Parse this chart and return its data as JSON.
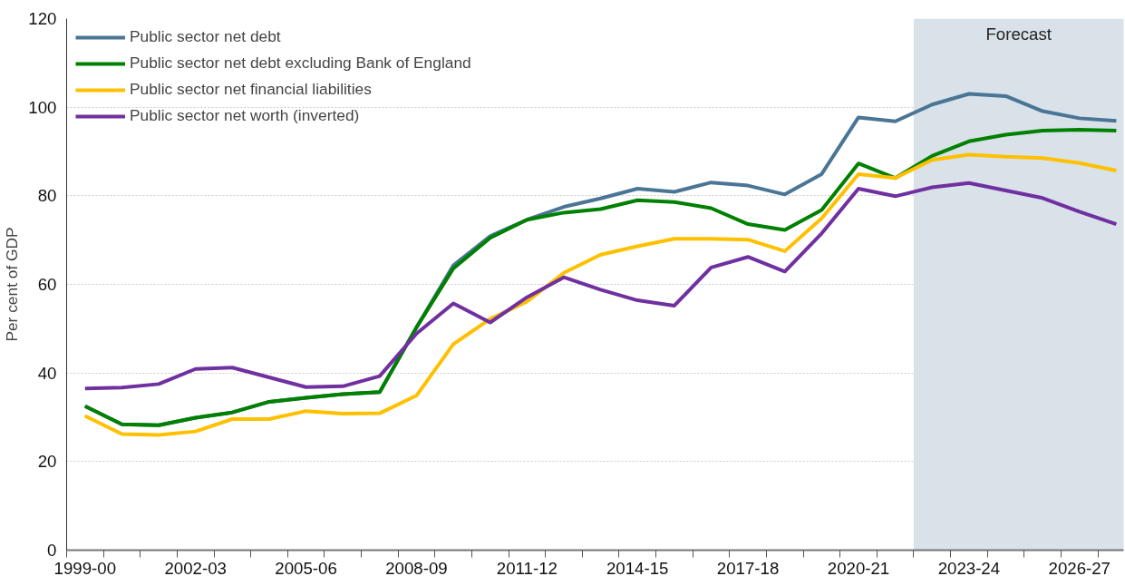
{
  "chart_data": {
    "type": "line",
    "ylabel": "Per cent of GDP",
    "categories": [
      "1999-00",
      null,
      null,
      "2002-03",
      null,
      null,
      "2005-06",
      null,
      null,
      "2008-09",
      null,
      null,
      "2011-12",
      null,
      null,
      "2014-15",
      null,
      null,
      "2017-18",
      null,
      null,
      "2020-21",
      null,
      null,
      "2023-24",
      null,
      null,
      "2026-27",
      null
    ],
    "ylim": [
      0,
      120
    ],
    "yticks": [
      0,
      20,
      40,
      60,
      80,
      100,
      120
    ],
    "grid": "y",
    "legend": "top left",
    "line_style": "solid",
    "marker": "none",
    "annotations": [
      "Forecast"
    ],
    "series": [
      {
        "name": "Public sector net debt",
        "color": "#4a7595",
        "values": [
          32.5,
          28.4,
          28.2,
          29.9,
          31.1,
          33.5,
          34.4,
          35.2,
          35.7,
          50.3,
          64.3,
          70.9,
          74.6,
          77.5,
          79.4,
          81.6,
          80.9,
          83.0,
          82.3,
          80.3,
          84.9,
          97.7,
          96.8,
          100.6,
          103.0,
          102.5,
          99.1,
          97.5,
          96.9
        ]
      },
      {
        "name": "Public sector net debt excluding Bank of England",
        "color": "#008000",
        "values": [
          32.5,
          28.4,
          28.2,
          29.9,
          31.1,
          33.5,
          34.4,
          35.2,
          35.7,
          50.3,
          63.6,
          70.5,
          74.6,
          76.2,
          77.0,
          79.0,
          78.6,
          77.2,
          73.6,
          72.3,
          76.8,
          87.3,
          84.0,
          89.0,
          92.3,
          93.8,
          94.7,
          94.9,
          94.7
        ]
      },
      {
        "name": "Public sector net financial liabilities",
        "color": "#ffc000",
        "values": [
          30.3,
          26.2,
          26.0,
          26.8,
          29.6,
          29.6,
          31.4,
          30.8,
          30.9,
          34.9,
          46.5,
          52.2,
          56.1,
          62.6,
          66.7,
          68.6,
          70.3,
          70.3,
          70.1,
          67.5,
          74.9,
          84.9,
          84.0,
          88.1,
          89.3,
          88.8,
          88.5,
          87.4,
          85.7
        ]
      },
      {
        "name": "Public sector net worth (inverted)",
        "color": "#7030a0",
        "values": [
          36.5,
          36.7,
          37.5,
          40.9,
          41.2,
          39.0,
          36.8,
          37.0,
          39.3,
          48.9,
          55.7,
          51.4,
          57.1,
          61.6,
          58.8,
          56.4,
          55.2,
          63.8,
          66.2,
          62.9,
          71.5,
          81.6,
          79.9,
          81.9,
          82.9,
          81.2,
          79.5,
          76.4,
          73.6
        ]
      }
    ]
  }
}
